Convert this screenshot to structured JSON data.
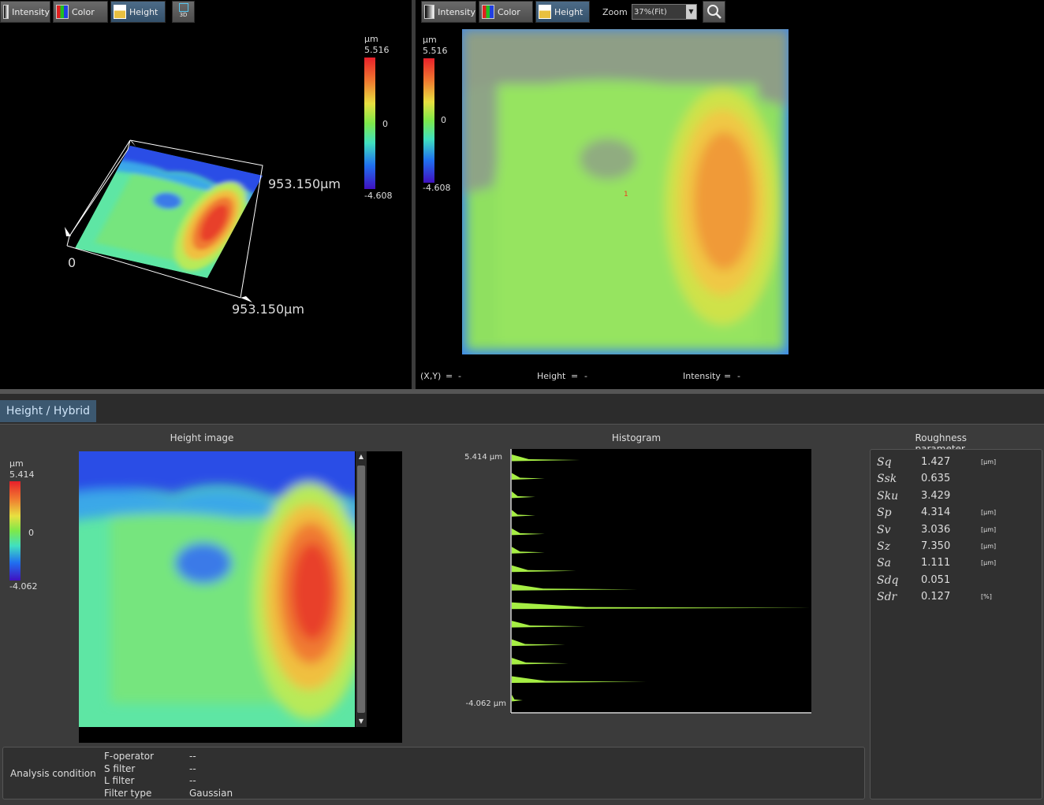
{
  "left_view": {
    "toolbar": [
      "Intensity",
      "Color",
      "Height",
      "3D"
    ],
    "colorbar": {
      "unit": "μm",
      "max": "5.516",
      "zero": "0",
      "min": "-4.608"
    },
    "axis_labels": {
      "y_extent": "953.150μm",
      "origin": "0",
      "x_extent": "953.150μm"
    }
  },
  "right_view": {
    "toolbar": [
      "Intensity",
      "Color",
      "Height"
    ],
    "zoom_label": "Zoom",
    "zoom_value": "37%(Fit)",
    "colorbar": {
      "unit": "μm",
      "max": "5.516",
      "zero": "0",
      "min": "-4.608"
    },
    "marker": "1",
    "status": [
      {
        "label": "(X,Y)",
        "eq": "=",
        "value": "-"
      },
      {
        "label": "Height",
        "eq": "=",
        "value": "-"
      },
      {
        "label": "Intensity",
        "eq": "=",
        "value": "-"
      }
    ]
  },
  "tab": "Height / Hybrid",
  "height_image": {
    "title": "Height image",
    "colorbar": {
      "unit": "μm",
      "max": "5.414",
      "zero": "0",
      "min": "-4.062"
    }
  },
  "histogram": {
    "title": "Histogram",
    "top_label": "5.414 μm",
    "bottom_label": "-4.062 μm",
    "counts": [
      87,
      42,
      30,
      30,
      42,
      42,
      82,
      160,
      380,
      94,
      68,
      72,
      172,
      14
    ]
  },
  "roughness": {
    "title": "Roughness parameter",
    "rows": [
      {
        "name": "Sq",
        "value": "1.427",
        "unit": "[μm]"
      },
      {
        "name": "Ssk",
        "value": "0.635"
      },
      {
        "name": "Sku",
        "value": "3.429"
      },
      {
        "name": "Sp",
        "value": "4.314",
        "unit": "[μm]"
      },
      {
        "name": "Sv",
        "value": "3.036",
        "unit": "[μm]"
      },
      {
        "name": "Sz",
        "value": "7.350",
        "unit": "[μm]"
      },
      {
        "name": "Sa",
        "value": "1.111",
        "unit": "[μm]"
      },
      {
        "name": "Sdq",
        "value": "0.051"
      },
      {
        "name": "Sdr",
        "value": "0.127",
        "unit": "[%]"
      }
    ]
  },
  "analysis_condition": {
    "title": "Analysis condition",
    "rows": [
      {
        "name": "F-operator",
        "value": "--"
      },
      {
        "name": "S filter",
        "value": "--"
      },
      {
        "name": "L filter",
        "value": "--"
      },
      {
        "name": "Filter type",
        "value": "Gaussian"
      }
    ]
  }
}
